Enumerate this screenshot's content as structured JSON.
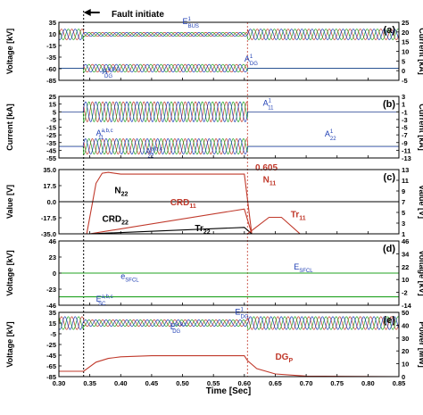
{
  "figure": {
    "xlabel": "Time [Sec]",
    "xlim": [
      0.3,
      0.85
    ],
    "xticks": [
      "0.30",
      "0.35",
      "0.40",
      "0.45",
      "0.50",
      "0.55",
      "0.60",
      "0.65",
      "0.70",
      "0.75",
      "0.80",
      "0.85"
    ],
    "fault_label": "Fault initiate",
    "fault_time": 0.34,
    "clear_time": 0.605,
    "clear_label": "0.605",
    "colors": {
      "red": "#c0392b",
      "green": "#22a322",
      "blue": "#1f3fb4",
      "gold": "#b8860b",
      "black": "#000000"
    }
  },
  "chart_data": [
    {
      "panel": "(a)",
      "type": "line",
      "ylabel": "Voltage [kV]",
      "ylim": [
        -85,
        35
      ],
      "yticks": [
        "35",
        "10",
        "-15",
        "-35",
        "-60",
        "-85"
      ],
      "y2label": "Current [kA]",
      "y2ticks": [
        "25",
        "20",
        "15",
        "10",
        "5",
        "0",
        "-5"
      ],
      "annotations": [
        {
          "base": "E",
          "sup": "1",
          "sub": "BUS",
          "t": 0.5,
          "v": 31
        },
        {
          "base": "A",
          "sup": "1",
          "sub": "DG",
          "t": 0.6,
          "v": -46
        },
        {
          "base": "A",
          "sup": "a,b,c",
          "sub": "DG",
          "t": 0.37,
          "v": -72
        }
      ],
      "series": [
        {
          "kind": "ac",
          "center": 10,
          "amp_pre": 11,
          "amp_fault": 4,
          "amp_post": 11
        },
        {
          "kind": "ac",
          "center": -60,
          "amp_pre": 0,
          "amp_fault": 8,
          "amp_post": 0
        }
      ]
    },
    {
      "panel": "(b)",
      "type": "line",
      "ylabel": "Current [kA]",
      "ylim": [
        -55,
        25
      ],
      "yticks": [
        "25",
        "15",
        "5",
        "-5",
        "-15",
        "-25",
        "-35",
        "-45",
        "-55"
      ],
      "y2label": "Current [kA]",
      "y2ticks": [
        "3",
        "1",
        "-1",
        "-3",
        "-5",
        "-7",
        "-9",
        "-11",
        "-13"
      ],
      "annotations": [
        {
          "base": "A",
          "sup": "1",
          "sub": "11",
          "t": 0.63,
          "v": 13
        },
        {
          "base": "A",
          "sup": "1",
          "sub": "22",
          "t": 0.73,
          "v": -27
        },
        {
          "base": "A",
          "sup": "a,b,c",
          "sub": "11",
          "t": 0.36,
          "v": -26
        },
        {
          "base": "A",
          "sup": "a,b,c",
          "sub": "22",
          "t": 0.44,
          "v": -50
        }
      ],
      "series": [
        {
          "kind": "ac",
          "center": 5,
          "amp_pre": 0,
          "amp_fault": 13,
          "amp_post": 0
        },
        {
          "kind": "ac",
          "center": -40,
          "amp_pre": 0,
          "amp_fault": 10,
          "amp_post": 0
        }
      ]
    },
    {
      "panel": "(c)",
      "type": "line",
      "ylabel": "Value [V]",
      "ylim": [
        -35,
        35
      ],
      "yticks": [
        "35.0",
        "17.5",
        "0.0",
        "-17.5",
        "-35.0"
      ],
      "y2label": "Value [V]",
      "y2ticks": [
        "13",
        "11",
        "9",
        "7",
        "5",
        "3",
        "1"
      ],
      "labels": [
        {
          "text": "N",
          "sub": "11",
          "t": 0.63,
          "v": 21,
          "color": "red"
        },
        {
          "text": "N",
          "sub": "22",
          "t": 0.39,
          "v": 9,
          "color": "black"
        },
        {
          "text": "CRD",
          "sub": "11",
          "t": 0.48,
          "v": -4,
          "color": "red"
        },
        {
          "text": "CRD",
          "sub": "22",
          "t": 0.37,
          "v": -22,
          "color": "black"
        },
        {
          "text": "Tr",
          "sub": "22",
          "t": 0.52,
          "v": -32,
          "color": "black"
        },
        {
          "text": "Tr",
          "sub": "11",
          "t": 0.675,
          "v": -17,
          "color": "red"
        }
      ],
      "series": [
        {
          "name": "N11",
          "color": "red",
          "t": [
            0.3,
            0.345,
            0.36,
            0.37,
            0.38,
            0.4,
            0.5,
            0.59,
            0.6,
            0.612,
            0.85
          ],
          "v": [
            -35,
            -35,
            20,
            31,
            32,
            30,
            30,
            30,
            30,
            -35,
            -35
          ]
        },
        {
          "name": "N22",
          "color": "black",
          "t": [
            0.3,
            0.85
          ],
          "v": [
            0,
            0
          ]
        },
        {
          "name": "CRD11",
          "color": "red",
          "t": [
            0.3,
            0.35,
            0.6,
            0.612,
            0.85
          ],
          "v": [
            -35,
            -35,
            -8,
            -35,
            -35
          ]
        },
        {
          "name": "CRD22",
          "color": "black",
          "t": [
            0.3,
            0.35,
            0.6,
            0.612,
            0.85
          ],
          "v": [
            -35,
            -35,
            -28,
            -35,
            -35
          ]
        },
        {
          "name": "Tr11",
          "color": "red",
          "t": [
            0.3,
            0.605,
            0.64,
            0.66,
            0.69,
            0.85
          ],
          "v": [
            -35,
            -35,
            -17,
            -17,
            -35,
            -35
          ]
        },
        {
          "name": "Tr22",
          "color": "black",
          "t": [
            0.3,
            0.59,
            0.85
          ],
          "v": [
            -35,
            -35,
            -35
          ]
        }
      ]
    },
    {
      "panel": "(d)",
      "type": "line",
      "ylabel": "Voltage [kV]",
      "ylim": [
        -46,
        46
      ],
      "yticks": [
        "46",
        "23",
        "0",
        "-23",
        "-46"
      ],
      "y2label": "Voltage [kV]",
      "y2ticks": [
        "46",
        "34",
        "22",
        "10",
        "-2",
        "-14"
      ],
      "annotations": [
        {
          "base": "E",
          "sup": "",
          "sub": "SFCL",
          "t": 0.68,
          "v": 5
        },
        {
          "base": "e",
          "sup": "",
          "sub": "SFCL",
          "t": 0.4,
          "v": -8
        },
        {
          "base": "E",
          "sup": "a,b,c",
          "sub": "SC",
          "t": 0.36,
          "v": -41
        }
      ],
      "series": [
        {
          "name": "E_SFCL",
          "color": "green",
          "t": [
            0.3,
            0.85
          ],
          "v": [
            0,
            0
          ]
        },
        {
          "name": "e_SFCL",
          "color": "green",
          "t": [
            0.3,
            0.85
          ],
          "v": [
            -34,
            -34
          ]
        }
      ]
    },
    {
      "panel": "(e)",
      "type": "line",
      "ylabel": "Voltage [kV]",
      "ylim": [
        -85,
        35
      ],
      "yticks": [
        "35",
        "15",
        "-5",
        "-25",
        "-45",
        "-65",
        "-85"
      ],
      "y2label": "Power [MW]",
      "y2ticks": [
        "50",
        "40",
        "30",
        "20",
        "10",
        "0"
      ],
      "annotations": [
        {
          "base": "E",
          "sup": "1",
          "sub": "DG",
          "t": 0.585,
          "v": 31
        },
        {
          "base": "E",
          "sup": "a,b,c",
          "sub": "DG",
          "t": 0.48,
          "v": 3
        }
      ],
      "labels": [
        {
          "text": "DG",
          "sub": "P",
          "t": 0.65,
          "v": -53,
          "color": "red"
        }
      ],
      "series": [
        {
          "kind": "ac",
          "center": 15,
          "amp_pre": 12,
          "amp_fault": 6,
          "amp_post": 12
        },
        {
          "name": "DG_P",
          "color": "red",
          "t": [
            0.3,
            0.34,
            0.36,
            0.38,
            0.4,
            0.45,
            0.5,
            0.55,
            0.6,
            0.605,
            0.62,
            0.65,
            0.7,
            0.85
          ],
          "v": [
            -75,
            -75,
            -58,
            -51,
            -48,
            -46,
            -46,
            -46,
            -46,
            -55,
            -70,
            -80,
            -84,
            -85
          ]
        }
      ]
    }
  ]
}
